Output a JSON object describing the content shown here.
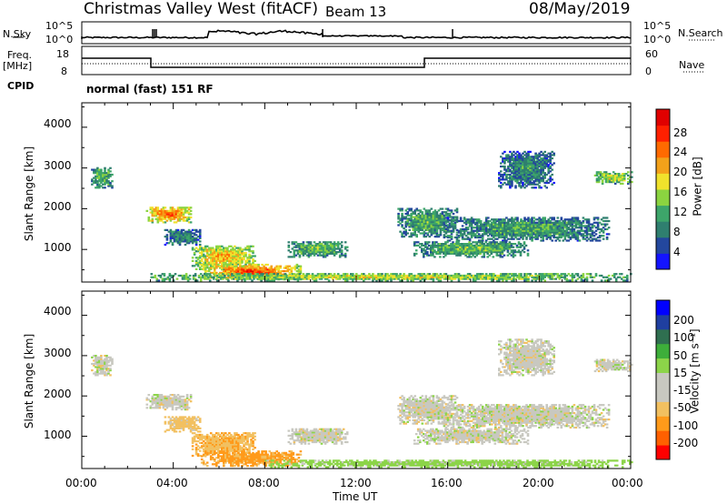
{
  "header": {
    "title": "Christmas Valley West (fitACF)",
    "beam": "Beam 13",
    "date": "08/May/2019"
  },
  "top_panels": {
    "nsky_label": "N.Sky",
    "nsky_ticks": [
      "10^5",
      "10^0"
    ],
    "nsearch_label": "N.Search",
    "nsearch_ticks": [
      "10^5",
      "10^0"
    ],
    "freq_label": "Freq.",
    "freq_unit": "[MHz]",
    "freq_ticks": [
      "18",
      "8"
    ],
    "nave_label": "Nave",
    "nave_ticks": [
      "60",
      "0"
    ],
    "cpid_label": "CPID",
    "cpid_text": "normal (fast) 151 RF"
  },
  "chart_data": [
    {
      "type": "heatmap",
      "name": "power",
      "ylabel": "Slant Range [km]",
      "xlabel": "",
      "xlim": [
        0,
        24
      ],
      "ylim": [
        200,
        4600
      ],
      "yticks": [
        "1000",
        "2000",
        "3000",
        "4000"
      ],
      "colorbar": {
        "label": "Power [dB]",
        "ticks": [
          "4",
          "8",
          "12",
          "16",
          "20",
          "24",
          "28"
        ],
        "colors": [
          "#1414ff",
          "#23479d",
          "#2f7f6f",
          "#3da56a",
          "#8bd440",
          "#f0e22c",
          "#f3a11a",
          "#ff6a00",
          "#ff2000",
          "#e00000"
        ]
      },
      "regions": [
        {
          "t": [
            2.8,
            4.8
          ],
          "r": [
            1650,
            2050
          ],
          "v": 26
        },
        {
          "t": [
            0.4,
            1.3
          ],
          "r": [
            2500,
            3000
          ],
          "v": 14
        },
        {
          "t": [
            4.8,
            7.6
          ],
          "r": [
            500,
            1100
          ],
          "v": 22
        },
        {
          "t": [
            5.2,
            9.6
          ],
          "r": [
            250,
            620
          ],
          "v": 27
        },
        {
          "t": [
            9.0,
            11.6
          ],
          "r": [
            800,
            1200
          ],
          "v": 14
        },
        {
          "t": [
            3.6,
            5.2
          ],
          "r": [
            1100,
            1500
          ],
          "v": 10
        },
        {
          "t": [
            13.8,
            16.4
          ],
          "r": [
            1300,
            2000
          ],
          "v": 13
        },
        {
          "t": [
            15.8,
            23.0
          ],
          "r": [
            1200,
            1800
          ],
          "v": 12
        },
        {
          "t": [
            14.5,
            19.5
          ],
          "r": [
            800,
            1200
          ],
          "v": 14
        },
        {
          "t": [
            18.2,
            20.6
          ],
          "r": [
            2500,
            3400
          ],
          "v": 10
        },
        {
          "t": [
            22.4,
            24.0
          ],
          "r": [
            2600,
            2900
          ],
          "v": 18
        },
        {
          "t": [
            3.0,
            24.0
          ],
          "r": [
            220,
            400
          ],
          "v": 18
        }
      ]
    },
    {
      "type": "heatmap",
      "name": "velocity",
      "ylabel": "Slant Range [km]",
      "xlabel": "Time UT",
      "xlim": [
        0,
        24
      ],
      "ylim": [
        200,
        4600
      ],
      "yticks": [
        "1000",
        "2000",
        "3000",
        "4000"
      ],
      "xticks": [
        "00:00",
        "04:00",
        "08:00",
        "12:00",
        "16:00",
        "20:00",
        "00:00"
      ],
      "colorbar": {
        "label": "Velocity [m s⁻¹]",
        "ticks": [
          "-200",
          "-100",
          "-50",
          "-15",
          "15",
          "50",
          "100",
          "200"
        ],
        "colors": [
          "#ff0000",
          "#ff6000",
          "#ff9a1a",
          "#f2c060",
          "#c8c8c0",
          "#c8c8c0",
          "#8cd449",
          "#3dae3a",
          "#2f6f50",
          "#1f3fa0",
          "#0000ff"
        ]
      },
      "regions": [
        {
          "t": [
            2.8,
            4.8
          ],
          "r": [
            1650,
            2050
          ],
          "v": 0
        },
        {
          "t": [
            0.4,
            1.3
          ],
          "r": [
            2500,
            3000
          ],
          "v": 0
        },
        {
          "t": [
            4.8,
            7.6
          ],
          "r": [
            500,
            1100
          ],
          "v": -40
        },
        {
          "t": [
            5.2,
            9.6
          ],
          "r": [
            250,
            620
          ],
          "v": -60
        },
        {
          "t": [
            9.0,
            11.6
          ],
          "r": [
            800,
            1200
          ],
          "v": 0
        },
        {
          "t": [
            3.6,
            5.2
          ],
          "r": [
            1100,
            1500
          ],
          "v": -30
        },
        {
          "t": [
            13.8,
            16.4
          ],
          "r": [
            1300,
            2000
          ],
          "v": 0
        },
        {
          "t": [
            15.8,
            23.0
          ],
          "r": [
            1200,
            1800
          ],
          "v": 0
        },
        {
          "t": [
            14.5,
            19.5
          ],
          "r": [
            800,
            1200
          ],
          "v": 0
        },
        {
          "t": [
            18.2,
            20.6
          ],
          "r": [
            2500,
            3400
          ],
          "v": 0
        },
        {
          "t": [
            22.4,
            24.0
          ],
          "r": [
            2600,
            2900
          ],
          "v": 0
        },
        {
          "t": [
            8.0,
            24.0
          ],
          "r": [
            220,
            400
          ],
          "v": 30
        }
      ]
    }
  ]
}
